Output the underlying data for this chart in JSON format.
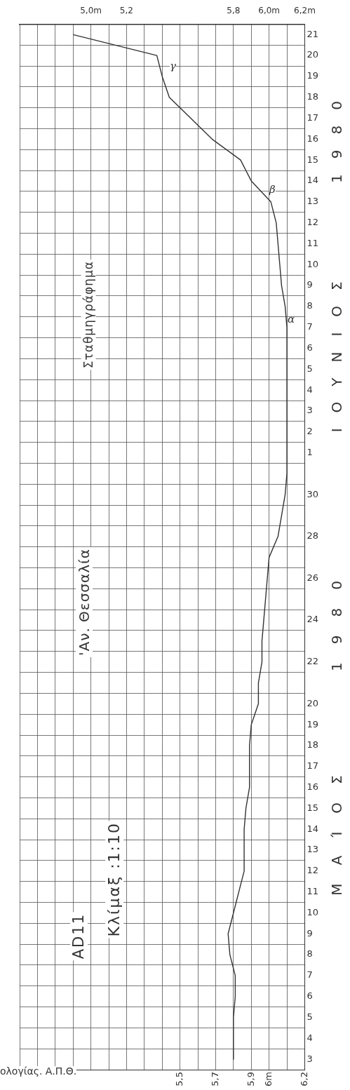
{
  "chart_data": {
    "type": "line",
    "orientation": "horizontal",
    "title": "Σταθμηγράφημα",
    "subtitle": "'Αν. Θεσσαλία",
    "annotations": [
      "AD11",
      "Κλίμαξ :1:10",
      "ΜΑΊΟΣ 1980",
      "ΙΟΥΝΙΟΣ 1980",
      "ολογίας. Α.Π.Θ.",
      "α",
      "β",
      "γ"
    ],
    "categories": [
      "21",
      "20",
      "19",
      "18",
      "17",
      "16",
      "15",
      "14",
      "13",
      "12",
      "11",
      "10",
      "9",
      "8",
      "7",
      "6",
      "5",
      "4",
      "3",
      "2",
      "1",
      null,
      "30",
      null,
      "28",
      null,
      "26",
      null,
      "24",
      null,
      "22",
      null,
      "20",
      "19",
      "18",
      "17",
      "16",
      "15",
      "14",
      "13",
      "12",
      "11",
      "10",
      "9",
      "8",
      "7",
      "6",
      "5",
      "4",
      "3"
    ],
    "series": [
      {
        "color": "#333333",
        "values": [
          4.9,
          5.37,
          5.4,
          5.44,
          5.56,
          5.68,
          5.84,
          5.9,
          6.01,
          6.04,
          6.05,
          6.06,
          6.07,
          6.09,
          6.1,
          6.1,
          6.1,
          6.1,
          6.1,
          6.1,
          6.1,
          6.1,
          6.09,
          6.07,
          6.05,
          6.0,
          5.99,
          5.98,
          5.97,
          5.96,
          5.96,
          5.94,
          5.94,
          5.9,
          5.89,
          5.89,
          5.89,
          5.87,
          5.86,
          5.86,
          5.86,
          5.83,
          5.8,
          5.77,
          5.78,
          5.81,
          5.81,
          5.8,
          5.8,
          5.8
        ]
      }
    ],
    "xlim": [
      4.6,
      6.2
    ],
    "xticks": [
      {
        "value": 4.6,
        "label": null
      },
      {
        "value": 4.7,
        "label": null
      },
      {
        "value": 4.8,
        "label": null
      },
      {
        "value": 4.9,
        "label": null
      },
      {
        "value": 5.0,
        "label": null
      },
      {
        "value": 5.1,
        "label": null
      },
      {
        "value": 5.2,
        "label": null
      },
      {
        "value": 5.3,
        "label": null
      },
      {
        "value": 5.4,
        "label": null
      },
      {
        "value": 5.5,
        "label": "5,5"
      },
      {
        "value": 5.6,
        "label": null
      },
      {
        "value": 5.7,
        "label": "5,7"
      },
      {
        "value": 5.8,
        "label": null
      },
      {
        "value": 5.9,
        "label": "5,9"
      },
      {
        "value": 6.0,
        "label": "6m"
      },
      {
        "value": 6.1,
        "label": null
      },
      {
        "value": 6.2,
        "label": "6,2"
      }
    ],
    "x2lim": [
      4.6,
      6.2
    ],
    "x2ticks": [
      {
        "value": 5.0,
        "label": "5,0m"
      },
      {
        "value": 5.2,
        "label": "5,2"
      },
      {
        "value": 5.8,
        "label": "5,8"
      },
      {
        "value": 6.0,
        "label": "6,0m"
      },
      {
        "value": 6.2,
        "label": "6,2m"
      }
    ],
    "grid": true,
    "line_style": "solid"
  }
}
